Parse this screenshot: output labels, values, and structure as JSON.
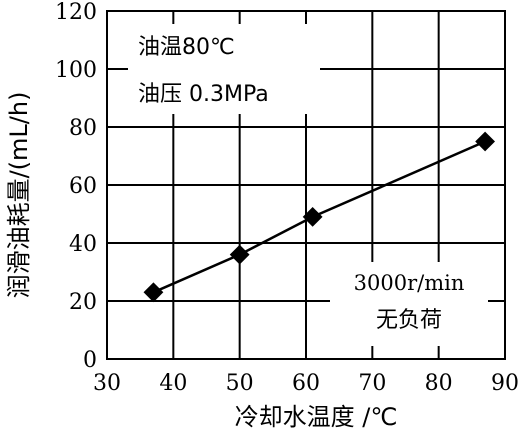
{
  "chart_data": {
    "type": "line",
    "xlabel": "冷却水温度 /℃",
    "ylabel": "润滑油耗量/(mL/h)",
    "xlim": [
      30,
      90
    ],
    "ylim": [
      0,
      120
    ],
    "x_ticks": [
      "30",
      "40",
      "50",
      "60",
      "70",
      "80",
      "90"
    ],
    "y_ticks": [
      "0",
      "20",
      "40",
      "60",
      "80",
      "100",
      "120"
    ],
    "grid": true,
    "series": [
      {
        "x": [
          37,
          50,
          61,
          87
        ],
        "y": [
          23,
          36,
          49,
          75
        ],
        "marker": "square",
        "color": "#000000"
      }
    ],
    "annotations": {
      "top_left": [
        "油温80℃",
        "油压 0.3MPa"
      ],
      "bottom_right": [
        "3000r/min",
        "无负荷"
      ]
    }
  }
}
